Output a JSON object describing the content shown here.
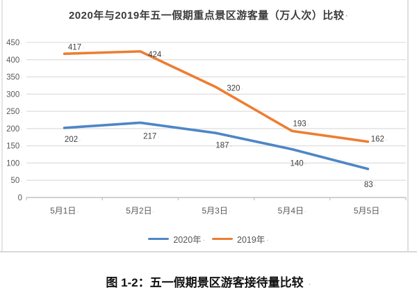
{
  "label_suffix": "·",
  "caption": "图 1-2：五一假期景区游客接待量比较",
  "chart_data": {
    "type": "line",
    "title": "2020年与2019年五一假期重点景区游客量（万人次）比较",
    "categories": [
      "5月1日",
      "5月2日",
      "5月3日",
      "5月4日",
      "5月5日"
    ],
    "series": [
      {
        "name": "2020年",
        "color": "#4E86C6",
        "values": [
          202,
          217,
          187,
          140,
          83
        ]
      },
      {
        "name": "2019年",
        "color": "#ED7D31",
        "values": [
          417,
          424,
          320,
          193,
          162
        ]
      }
    ],
    "xlabel": "",
    "ylabel": "",
    "ylim": [
      0,
      450
    ],
    "y_tick_step": 50,
    "grid": true,
    "data_labels": true,
    "legend_position": "bottom",
    "colors": {
      "gridline": "#dadada",
      "baseline": "#c0c0c0",
      "tick_label": "#595959",
      "data_label": "#3f3f3f"
    }
  }
}
